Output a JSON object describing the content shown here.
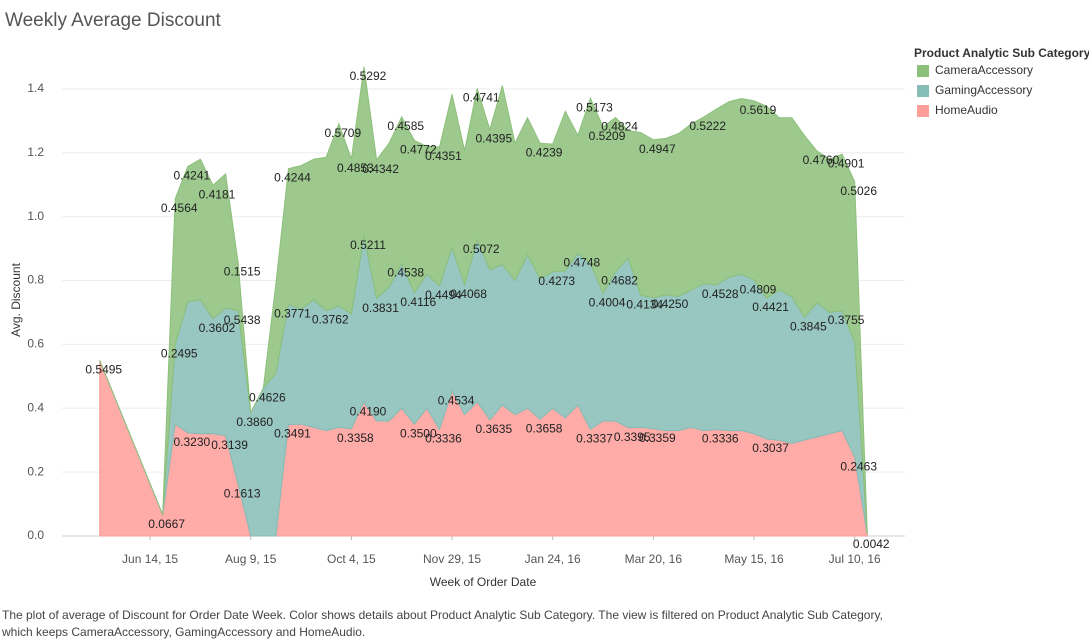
{
  "chart_data": {
    "type": "area",
    "stacked": true,
    "title": "Weekly Average Discount",
    "x_label": "Week of Order Date",
    "y_label": "Avg. Discount",
    "legend_title": "Product Analytic Sub Category",
    "caption": "The plot of average of Discount for Order Date Week.  Color shows details about Product Analytic Sub Category. The view is filtered on Product Analytic Sub Category, which keeps CameraAccessory, GamingAccessory and HomeAudio.",
    "legend": "right",
    "grid": true,
    "xlim": [
      "2015-04-26",
      "2016-08-07"
    ],
    "xticks": [
      {
        "value": "2015-06-14",
        "label": "Jun 14, 15"
      },
      {
        "value": "2015-08-09",
        "label": "Aug 9, 15"
      },
      {
        "value": "2015-10-04",
        "label": "Oct 4, 15"
      },
      {
        "value": "2015-11-29",
        "label": "Nov 29, 15"
      },
      {
        "value": "2016-01-24",
        "label": "Jan 24, 16"
      },
      {
        "value": "2016-03-20",
        "label": "Mar 20, 16"
      },
      {
        "value": "2016-05-15",
        "label": "May 15, 16"
      },
      {
        "value": "2016-07-10",
        "label": "Jul 10, 16"
      }
    ],
    "ylim": [
      0,
      1.5
    ],
    "yticks": [
      {
        "value": 0,
        "label": "0.0"
      },
      0.2,
      0.4,
      0.6,
      0.8,
      {
        "value": 1,
        "label": "1.0"
      },
      1.2,
      1.4
    ],
    "x": [
      "2015-05-17",
      "2015-06-21",
      "2015-06-28",
      "2015-07-05",
      "2015-07-12",
      "2015-07-19",
      "2015-07-26",
      "2015-08-02",
      "2015-08-09",
      "2015-08-16",
      "2015-08-23",
      "2015-08-30",
      "2015-09-06",
      "2015-09-13",
      "2015-09-20",
      "2015-09-27",
      "2015-10-04",
      "2015-10-11",
      "2015-10-18",
      "2015-10-25",
      "2015-11-01",
      "2015-11-08",
      "2015-11-15",
      "2015-11-22",
      "2015-11-29",
      "2015-12-06",
      "2015-12-13",
      "2015-12-20",
      "2015-12-27",
      "2016-01-03",
      "2016-01-10",
      "2016-01-17",
      "2016-01-24",
      "2016-01-31",
      "2016-02-07",
      "2016-02-14",
      "2016-02-21",
      "2016-02-28",
      "2016-03-06",
      "2016-03-13",
      "2016-03-20",
      "2016-03-27",
      "2016-04-03",
      "2016-04-10",
      "2016-04-17",
      "2016-04-24",
      "2016-05-01",
      "2016-05-08",
      "2016-05-15",
      "2016-05-22",
      "2016-05-29",
      "2016-06-05",
      "2016-06-12",
      "2016-06-19",
      "2016-06-26",
      "2016-07-03",
      "2016-07-10",
      "2016-07-17"
    ],
    "series": [
      {
        "name": "CameraAccessory",
        "color": "#8cc07a",
        "values": [
          null,
          null,
          0.4564,
          0.4241,
          0.44,
          0.4181,
          0.42,
          0.1515,
          null,
          null,
          0.28,
          0.4244,
          0.45,
          0.44,
          0.48,
          0.5709,
          0.4853,
          0.5292,
          0.4342,
          0.45,
          0.4585,
          0.4772,
          0.4,
          0.4351,
          0.48,
          0.42,
          0.4741,
          0.4395,
          0.56,
          0.43,
          0.43,
          0.4239,
          0.4,
          0.5,
          0.37,
          0.5173,
          0.5209,
          0.4824,
          0.4,
          0.51,
          0.4947,
          0.49,
          0.51,
          0.52,
          0.5222,
          0.55,
          0.55,
          0.55,
          0.5619,
          0.6,
          0.54,
          0.56,
          0.57,
          0.476,
          0.48,
          0.4901,
          0.5026,
          null
        ],
        "value_labels": [
          null,
          null,
          "0.4564",
          "0.4241",
          null,
          "0.4181",
          null,
          "0.1515",
          null,
          null,
          null,
          "0.4244",
          null,
          null,
          null,
          "0.5709",
          "0.4853",
          "0.5292",
          "0.4342",
          null,
          "0.4585",
          "0.4772",
          null,
          "0.4351",
          null,
          null,
          "0.4741",
          "0.4395",
          null,
          null,
          null,
          "0.4239",
          null,
          null,
          null,
          "0.5173",
          "0.5209",
          "0.4824",
          null,
          null,
          "0.4947",
          null,
          null,
          null,
          "0.5222",
          null,
          null,
          null,
          "0.5619",
          null,
          null,
          null,
          null,
          "0.4760",
          null,
          "0.4901",
          "0.5026",
          null
        ]
      },
      {
        "name": "GamingAccessory",
        "color": "#86bcb6",
        "values": [
          null,
          null,
          0.2495,
          0.41,
          0.42,
          0.3602,
          0.4,
          0.5438,
          0.386,
          0.4626,
          0.51,
          0.3771,
          0.36,
          0.4,
          0.3762,
          0.38,
          0.36,
          0.5211,
          0.3831,
          0.42,
          0.4538,
          0.4116,
          0.42,
          0.4494,
          0.45,
          0.4068,
          0.5072,
          0.47,
          0.44,
          0.42,
          0.48,
          0.44,
          0.4273,
          0.46,
          0.4748,
          0.52,
          0.4004,
          0.4682,
          0.53,
          0.4134,
          0.41,
          0.425,
          0.42,
          0.43,
          0.46,
          0.4528,
          0.48,
          0.49,
          0.4809,
          0.4421,
          0.47,
          0.46,
          0.3845,
          0.42,
          0.38,
          0.3755,
          0.36,
          null
        ],
        "value_labels": [
          null,
          null,
          "0.2495",
          null,
          null,
          "0.3602",
          null,
          "0.5438",
          "0.3860",
          "0.4626",
          null,
          "0.3771",
          null,
          null,
          "0.3762",
          null,
          null,
          "0.5211",
          "0.3831",
          null,
          "0.4538",
          "0.4116",
          null,
          "0.4494",
          null,
          "0.4068",
          "0.5072",
          null,
          null,
          null,
          null,
          null,
          "0.4273",
          null,
          "0.4748",
          null,
          "0.4004",
          "0.4682",
          null,
          "0.4134",
          null,
          "0.4250",
          null,
          null,
          null,
          "0.4528",
          null,
          null,
          "0.4809",
          "0.4421",
          null,
          null,
          "0.3845",
          null,
          null,
          "0.3755",
          null,
          null
        ]
      },
      {
        "name": "HomeAudio",
        "color": "#ff9d9a",
        "values": [
          0.5495,
          0.0667,
          0.35,
          0.323,
          0.32,
          0.32,
          0.3139,
          0.1613,
          null,
          null,
          null,
          0.3491,
          0.35,
          0.34,
          0.33,
          0.34,
          0.3358,
          0.419,
          0.36,
          0.36,
          0.4,
          0.35,
          0.4,
          0.3336,
          0.4534,
          0.38,
          0.42,
          0.3635,
          0.41,
          0.38,
          0.4,
          0.3658,
          0.4,
          0.37,
          0.41,
          0.3337,
          0.36,
          0.36,
          0.3395,
          0.34,
          0.3359,
          0.33,
          0.33,
          0.34,
          0.33,
          0.3336,
          0.33,
          0.33,
          0.32,
          0.3037,
          0.3,
          0.29,
          0.3,
          0.31,
          0.32,
          0.33,
          0.2463,
          0.0042
        ],
        "value_labels": [
          "0.5495",
          "0.0667",
          null,
          "0.3230",
          null,
          null,
          "0.3139",
          "0.1613",
          null,
          null,
          null,
          "0.3491",
          null,
          null,
          null,
          null,
          "0.3358",
          "0.4190",
          null,
          null,
          null,
          "0.3500",
          null,
          "0.3336",
          "0.4534",
          null,
          null,
          "0.3635",
          null,
          null,
          null,
          "0.3658",
          null,
          null,
          null,
          "0.3337",
          null,
          null,
          "0.3395",
          null,
          "0.3359",
          null,
          null,
          null,
          null,
          "0.3336",
          null,
          null,
          null,
          "0.3037",
          null,
          null,
          null,
          null,
          null,
          null,
          "0.2463",
          "0.0042"
        ]
      }
    ]
  }
}
